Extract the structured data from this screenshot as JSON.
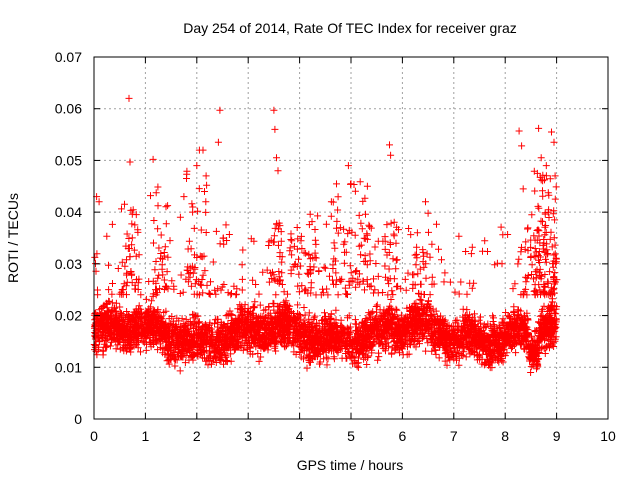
{
  "chart_data": {
    "type": "scatter",
    "title": "Day 254 of 2014, Rate Of TEC Index for receiver graz",
    "xlabel": "GPS time / hours",
    "ylabel": "ROTI / TECUs",
    "xlim": [
      0,
      10
    ],
    "ylim": [
      0,
      0.07
    ],
    "xticks": [
      "0",
      "1",
      "2",
      "3",
      "4",
      "5",
      "6",
      "7",
      "8",
      "9",
      "10"
    ],
    "yticks": [
      "0",
      "0.01",
      "0.02",
      "0.03",
      "0.04",
      "0.05",
      "0.06",
      "0.07"
    ],
    "grid": true,
    "marker": "+",
    "series_color": "#ff0000",
    "data_range_hours": [
      0,
      9
    ],
    "outliers": [
      [
        0.05,
        0.043
      ],
      [
        0.1,
        0.042
      ],
      [
        0.68,
        0.062
      ],
      [
        0.7,
        0.0497
      ],
      [
        1.1,
        0.0432
      ],
      [
        1.15,
        0.0502
      ],
      [
        1.3,
        0.032
      ],
      [
        1.68,
        0.039
      ],
      [
        1.75,
        0.043
      ],
      [
        1.8,
        0.0465
      ],
      [
        1.92,
        0.041
      ],
      [
        2.0,
        0.049
      ],
      [
        2.05,
        0.052
      ],
      [
        2.12,
        0.052
      ],
      [
        2.18,
        0.047
      ],
      [
        2.42,
        0.0535
      ],
      [
        2.45,
        0.0597
      ],
      [
        3.5,
        0.0597
      ],
      [
        3.52,
        0.056
      ],
      [
        3.55,
        0.0505
      ],
      [
        3.58,
        0.048
      ],
      [
        4.95,
        0.049
      ],
      [
        5.0,
        0.0455
      ],
      [
        5.32,
        0.045
      ],
      [
        5.75,
        0.053
      ],
      [
        5.77,
        0.051
      ],
      [
        6.45,
        0.042
      ],
      [
        6.5,
        0.0398
      ],
      [
        8.27,
        0.0557
      ],
      [
        8.32,
        0.0528
      ],
      [
        8.35,
        0.0445
      ],
      [
        8.65,
        0.0562
      ],
      [
        8.7,
        0.0505
      ],
      [
        8.8,
        0.049
      ],
      [
        8.9,
        0.0555
      ],
      [
        8.95,
        0.0535
      ],
      [
        8.97,
        0.047
      ]
    ],
    "bursts": [
      {
        "x_center": 0.7,
        "x_width": 0.35,
        "y_range": [
          0.025,
          0.043
        ],
        "count": 35
      },
      {
        "x_center": 1.3,
        "x_width": 0.3,
        "y_range": [
          0.025,
          0.045
        ],
        "count": 30
      },
      {
        "x_center": 2.0,
        "x_width": 0.4,
        "y_range": [
          0.026,
          0.05
        ],
        "count": 35
      },
      {
        "x_center": 3.55,
        "x_width": 0.3,
        "y_range": [
          0.026,
          0.04
        ],
        "count": 25
      },
      {
        "x_center": 4.1,
        "x_width": 0.6,
        "y_range": [
          0.028,
          0.04
        ],
        "count": 45
      },
      {
        "x_center": 5.0,
        "x_width": 0.8,
        "y_range": [
          0.026,
          0.046
        ],
        "count": 60
      },
      {
        "x_center": 5.8,
        "x_width": 0.3,
        "y_range": [
          0.026,
          0.042
        ],
        "count": 20
      },
      {
        "x_center": 6.4,
        "x_width": 0.4,
        "y_range": [
          0.026,
          0.035
        ],
        "count": 20
      },
      {
        "x_center": 8.45,
        "x_width": 0.15,
        "y_range": [
          0.025,
          0.042
        ],
        "count": 15
      },
      {
        "x_center": 8.78,
        "x_width": 0.45,
        "y_range": [
          0.024,
          0.048
        ],
        "count": 110
      }
    ],
    "description_density": "dense band of points between ~0.008 and ~0.025 TECUs from 0 to 9 hours; gap ~8.5-8.6 h around 0.005-0.02"
  }
}
